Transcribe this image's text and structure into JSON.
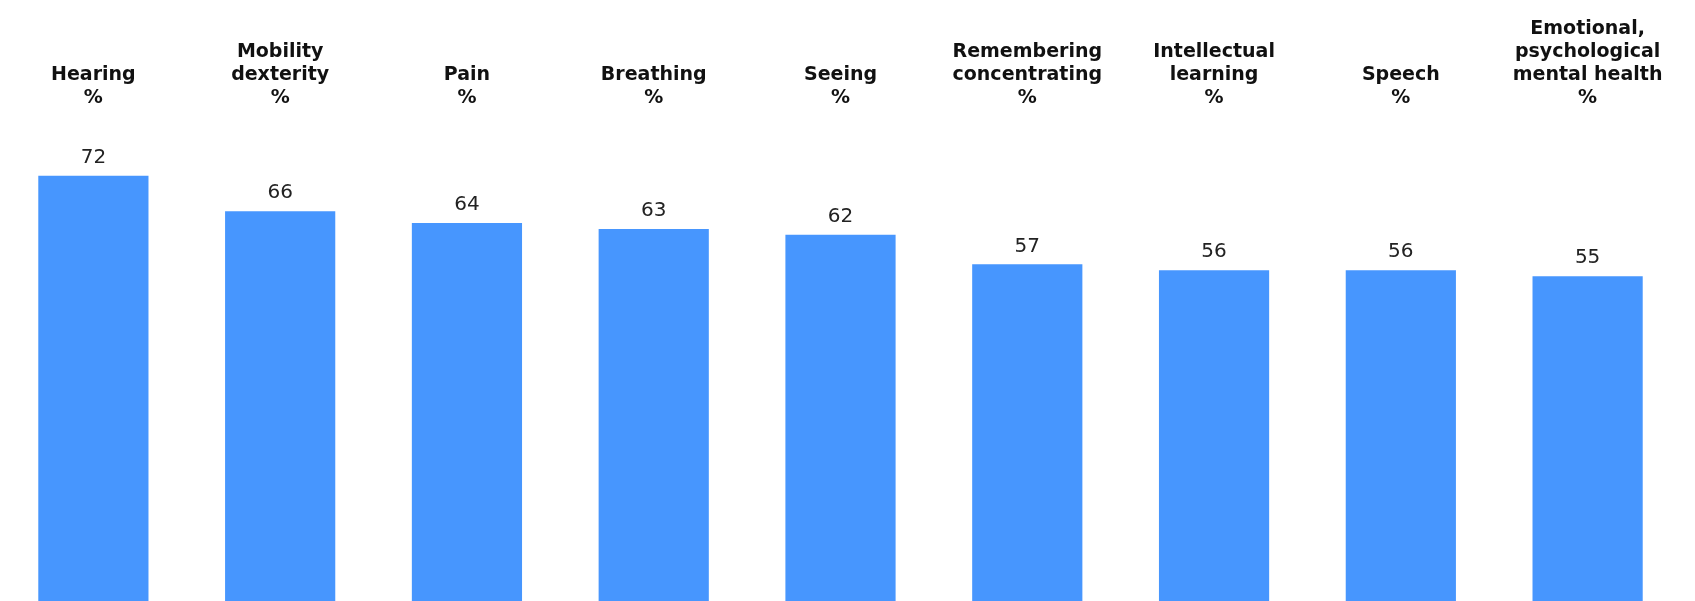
{
  "chart_data": {
    "type": "bar",
    "categories": [
      "Hearing\n%",
      "Mobility\ndexterity\n%",
      "Pain\n%",
      "Breathing\n%",
      "Seeing\n%",
      "Remembering\nconcentrating\n%",
      "Intellectual\nlearning\n%",
      "Speech\n%",
      "Emotional,\npsychological\nmental health\n%"
    ],
    "values": [
      72,
      66,
      64,
      63,
      62,
      57,
      56,
      56,
      55
    ],
    "color": "#4796fe",
    "data_labels": true,
    "grid": false,
    "legend": false
  }
}
